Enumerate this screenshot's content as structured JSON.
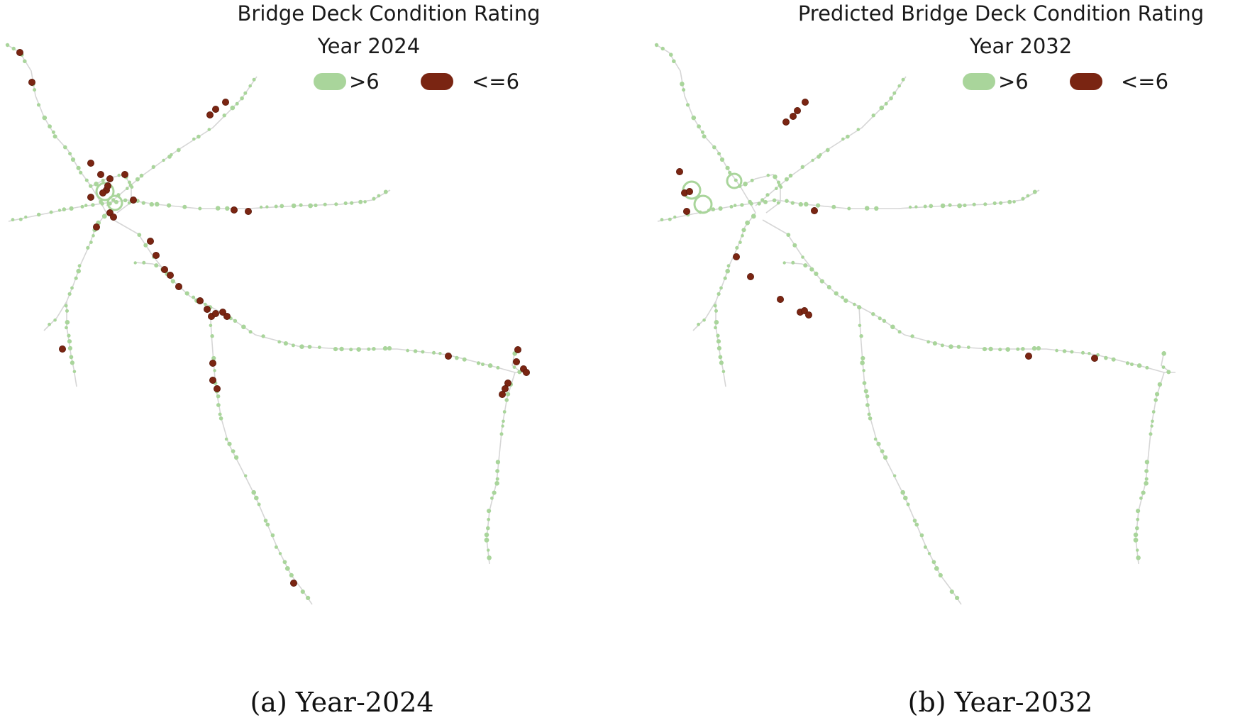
{
  "colors": {
    "good": "#a9d59b",
    "poor": "#7a2512",
    "road": "#d6d6d6"
  },
  "legend": {
    "good_label": ">6",
    "poor_label": "<=6"
  },
  "panels": [
    {
      "title_line1": "Bridge Deck Condition Rating",
      "title_line2": "Year 2024",
      "caption": "(a)  Year-2024"
    },
    {
      "title_line1": "Predicted Bridge Deck Condition Rating",
      "title_line2": "Year 2032",
      "caption": "(b) Year-2032"
    }
  ]
}
